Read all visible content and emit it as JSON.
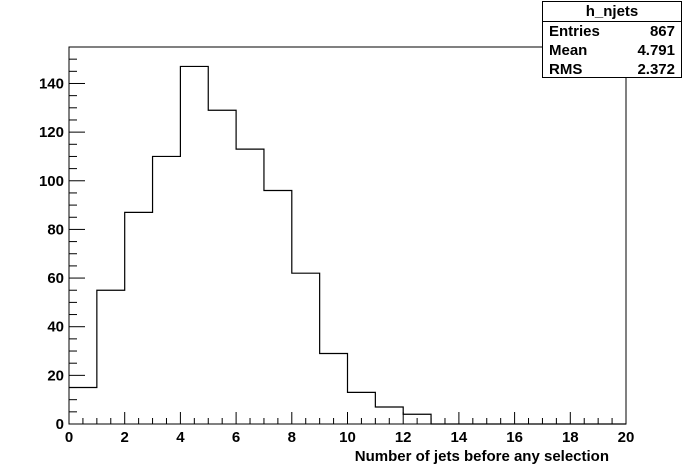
{
  "chart_data": {
    "type": "histogram",
    "title": "h_njets",
    "xlabel": "Number of jets before any selection",
    "ylabel": "",
    "xlim": [
      0,
      20
    ],
    "ylim": [
      0,
      155
    ],
    "grid": false,
    "bin_width": 1,
    "bin_low_edges": [
      0,
      1,
      2,
      3,
      4,
      5,
      6,
      7,
      8,
      9,
      10,
      11,
      12,
      13,
      14,
      15,
      16,
      17,
      18,
      19
    ],
    "values": [
      15,
      55,
      87,
      110,
      147,
      129,
      113,
      96,
      62,
      29,
      13,
      7,
      4,
      0,
      0,
      0,
      0,
      0,
      0,
      0
    ],
    "x_ticks": [
      0,
      2,
      4,
      6,
      8,
      10,
      12,
      14,
      16,
      18,
      20
    ],
    "y_ticks": [
      0,
      20,
      40,
      60,
      80,
      100,
      120,
      140
    ],
    "stats": {
      "entries_label": "Entries",
      "entries": "867",
      "mean_label": "Mean",
      "mean": "4.791",
      "rms_label": "RMS",
      "rms": "2.372"
    }
  }
}
